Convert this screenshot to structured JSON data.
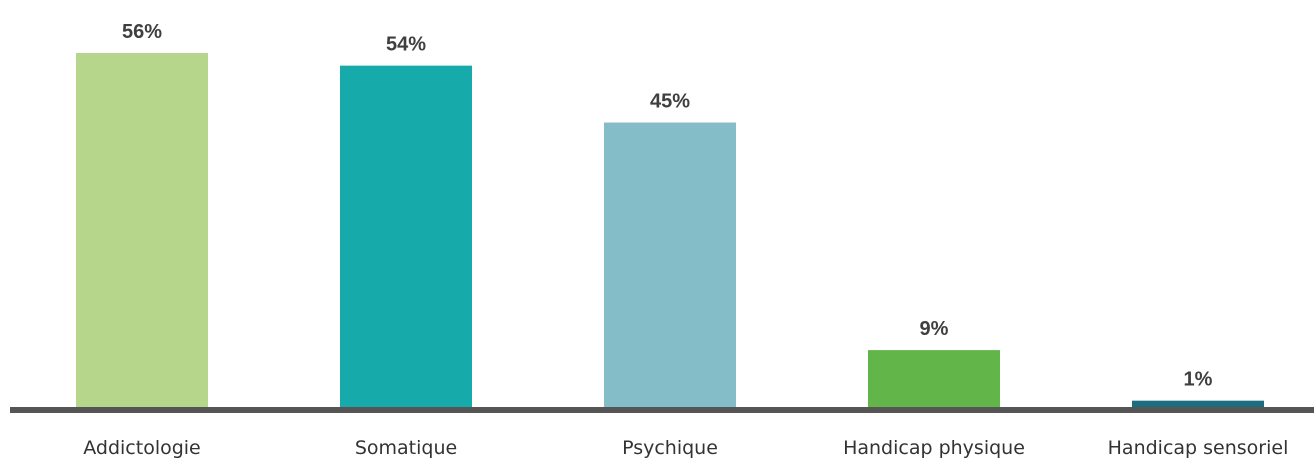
{
  "chart_data": {
    "type": "bar",
    "title": "",
    "xlabel": "",
    "ylabel": "",
    "ylim": [
      0,
      60
    ],
    "grid": false,
    "legend": "none",
    "categories": [
      "Addictologie",
      "Somatique",
      "Psychique",
      "Handicap physique",
      "Handicap sensoriel"
    ],
    "values": [
      56,
      54,
      45,
      9,
      1
    ],
    "value_labels": [
      "56%",
      "54%",
      "45%",
      "9%",
      "1%"
    ],
    "colors": [
      "#b5d68b",
      "#16aaab",
      "#84bdc7",
      "#62b548",
      "#1c6d80"
    ],
    "axis_color": "#555555"
  }
}
